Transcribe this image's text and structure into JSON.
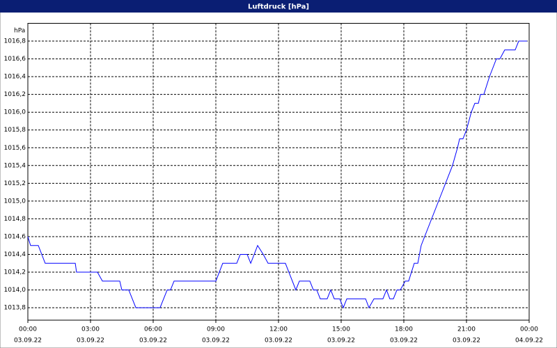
{
  "chart_data": {
    "type": "line",
    "title": "Luftdruck [hPa]",
    "y_unit": "hPa",
    "x": [
      0,
      0.13,
      0.5,
      0.83,
      2.27,
      2.33,
      3.33,
      3.57,
      4.4,
      4.5,
      4.83,
      5.17,
      6.33,
      6.67,
      6.83,
      7,
      9,
      9.33,
      10,
      10.17,
      10.5,
      10.67,
      11,
      11.27,
      11.5,
      12.33,
      12.83,
      13,
      13.5,
      13.67,
      13.83,
      14,
      14.33,
      14.5,
      14.67,
      14.93,
      15.1,
      15.27,
      16.17,
      16.33,
      16.57,
      17,
      17.17,
      17.33,
      17.5,
      17.67,
      17.83,
      18.07,
      18.23,
      18.5,
      18.67,
      18.83,
      20.33,
      20.57,
      20.67,
      20.83,
      21,
      21.23,
      21.4,
      21.57,
      21.67,
      21.83,
      22.1,
      22.43,
      22.6,
      22.83,
      23.33,
      23.5,
      23.9
    ],
    "series": [
      {
        "name": "Luftdruck",
        "color": "#0000ff",
        "values": [
          1014.6,
          1014.5,
          1014.5,
          1014.3,
          1014.3,
          1014.2,
          1014.2,
          1014.1,
          1014.1,
          1014.0,
          1014.0,
          1013.8,
          1013.8,
          1014.0,
          1014.0,
          1014.1,
          1014.1,
          1014.3,
          1014.3,
          1014.4,
          1014.4,
          1014.3,
          1014.5,
          1014.4,
          1014.3,
          1014.3,
          1014.0,
          1014.1,
          1014.1,
          1014.0,
          1014.0,
          1013.9,
          1013.9,
          1014.0,
          1013.9,
          1013.9,
          1013.8,
          1013.9,
          1013.9,
          1013.8,
          1013.9,
          1013.9,
          1014.0,
          1013.9,
          1013.9,
          1014.0,
          1014.0,
          1014.1,
          1014.1,
          1014.3,
          1014.3,
          1014.5,
          1015.4,
          1015.6,
          1015.7,
          1015.7,
          1015.8,
          1016.0,
          1016.1,
          1016.1,
          1016.2,
          1016.2,
          1016.4,
          1016.6,
          1016.6,
          1016.7,
          1016.7,
          1016.8,
          1016.8
        ]
      }
    ],
    "xlim": [
      0,
      24
    ],
    "xticks": [
      {
        "value": 0,
        "label": "00:00"
      },
      {
        "value": 3,
        "label": "03:00"
      },
      {
        "value": 6,
        "label": "06:00"
      },
      {
        "value": 9,
        "label": "09:00"
      },
      {
        "value": 12,
        "label": "12:00"
      },
      {
        "value": 15,
        "label": "15:00"
      },
      {
        "value": 18,
        "label": "18:00"
      },
      {
        "value": 21,
        "label": "21:00"
      },
      {
        "value": 24,
        "label": "00:00"
      }
    ],
    "xtick_dates": [
      "03.09.22",
      "03.09.22",
      "03.09.22",
      "03.09.22",
      "03.09.22",
      "03.09.22",
      "03.09.22",
      "03.09.22",
      "04.09.22"
    ],
    "ylim": [
      1013.66,
      1017.0
    ],
    "yticks": [
      {
        "value": 1013.8,
        "label": "1013,8"
      },
      {
        "value": 1014.0,
        "label": "1014,0"
      },
      {
        "value": 1014.2,
        "label": "1014,2"
      },
      {
        "value": 1014.4,
        "label": "1014,4"
      },
      {
        "value": 1014.6,
        "label": "1014,6"
      },
      {
        "value": 1014.8,
        "label": "1014,8"
      },
      {
        "value": 1015.0,
        "label": "1015,0"
      },
      {
        "value": 1015.2,
        "label": "1015,2"
      },
      {
        "value": 1015.4,
        "label": "1015,4"
      },
      {
        "value": 1015.6,
        "label": "1015,6"
      },
      {
        "value": 1015.8,
        "label": "1015,8"
      },
      {
        "value": 1016.0,
        "label": "1016,0"
      },
      {
        "value": 1016.2,
        "label": "1016,2"
      },
      {
        "value": 1016.4,
        "label": "1016,4"
      },
      {
        "value": 1016.6,
        "label": "1016,6"
      },
      {
        "value": 1016.8,
        "label": "1016,8"
      }
    ],
    "grid": true
  }
}
